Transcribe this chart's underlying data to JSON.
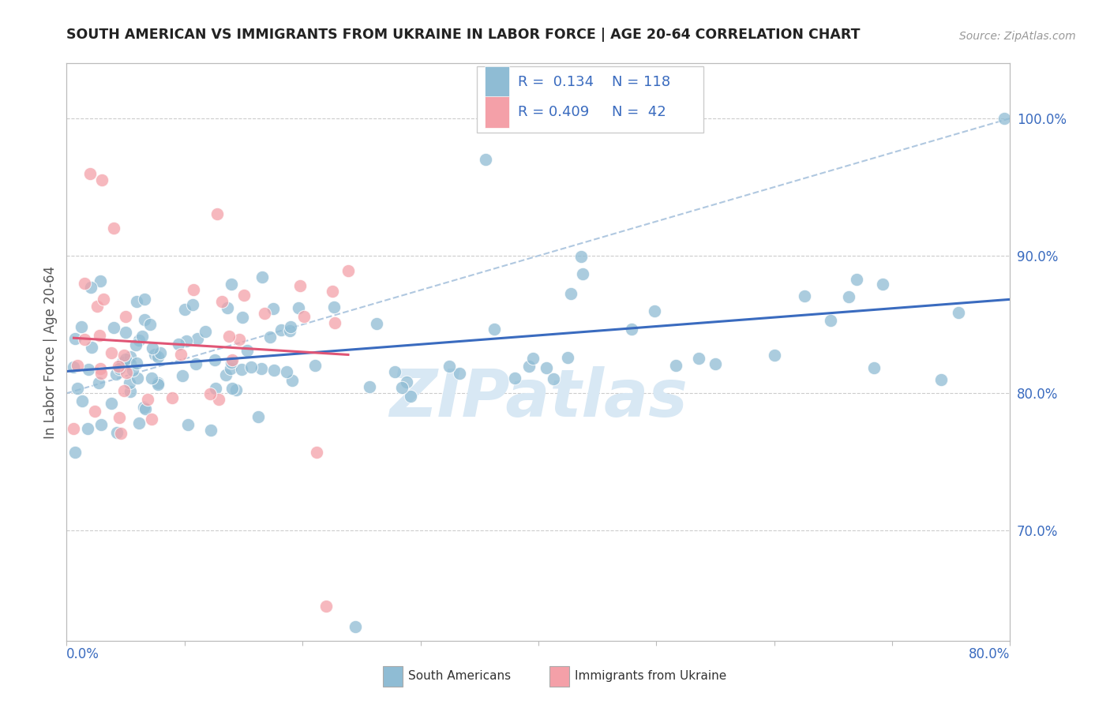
{
  "title": "SOUTH AMERICAN VS IMMIGRANTS FROM UKRAINE IN LABOR FORCE | AGE 20-64 CORRELATION CHART",
  "source": "Source: ZipAtlas.com",
  "ylabel": "In Labor Force | Age 20-64",
  "xlim": [
    0.0,
    0.8
  ],
  "ylim": [
    0.62,
    1.04
  ],
  "R_blue": 0.134,
  "N_blue": 118,
  "R_pink": 0.409,
  "N_pink": 42,
  "blue_color": "#8fbcd4",
  "pink_color": "#f4a0a8",
  "blue_line_color": "#3a6bbf",
  "pink_line_color": "#e05575",
  "dash_line_color": "#b0c8e0",
  "watermark_color": "#d8e8f4",
  "legend_label_blue": "South Americans",
  "legend_label_pink": "Immigrants from Ukraine",
  "ytick_vals": [
    0.7,
    0.8,
    0.9,
    1.0
  ],
  "ytick_labels": [
    "70.0%",
    "80.0%",
    "90.0%",
    "100.0%"
  ]
}
